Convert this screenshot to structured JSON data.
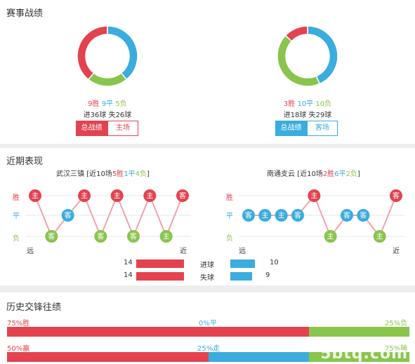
{
  "colors": {
    "red": "#e2434f",
    "blue": "#3aacde",
    "green": "#89c44d"
  },
  "section1": {
    "title": "赛事战绩",
    "left": {
      "wins": "9胜",
      "draws": "9平",
      "losses": "5负",
      "goals": "进36球 失26球",
      "win_count": 9,
      "draw_count": 9,
      "loss_count": 5,
      "tab_all": "总战绩",
      "tab_side": "主场",
      "active": "all"
    },
    "right": {
      "wins": "3胜",
      "draws": "10平",
      "losses": "10负",
      "goals": "进18球 失29球",
      "win_count": 3,
      "draw_count": 10,
      "loss_count": 10,
      "tab_all": "总战绩",
      "tab_side": "客场",
      "active": "all"
    }
  },
  "section2": {
    "title": "近期表现",
    "axis": {
      "win": "胜",
      "draw": "平",
      "loss": "负",
      "far": "远",
      "near": "近"
    },
    "left": {
      "team_name": "武汉三镇",
      "prefix": " [近10场",
      "w": "5胜",
      "d": "1平",
      "l": "4负",
      "suffix": "]",
      "results": [
        "W",
        "L",
        "D",
        "W",
        "L",
        "W",
        "L",
        "W",
        "L",
        "W"
      ],
      "venues": [
        "主",
        "客",
        "客",
        "主",
        "客",
        "主",
        "客",
        "主",
        "主",
        "客"
      ]
    },
    "right": {
      "team_name": "南通支云",
      "prefix": " [近10场",
      "w": "2胜",
      "d": "6平",
      "l": "2负",
      "suffix": "]",
      "results": [
        "D",
        "D",
        "D",
        "D",
        "W",
        "L",
        "D",
        "D",
        "L",
        "W"
      ],
      "venues": [
        "客",
        "主",
        "主",
        "客",
        "主",
        "主",
        "客",
        "客",
        "主",
        "客"
      ]
    },
    "goals_for_label": "进球",
    "goals_against_label": "失球",
    "left_goals_for": "14",
    "left_goals_against": "14",
    "right_goals_for": "10",
    "right_goals_against": "9",
    "left_gf_val": 14,
    "left_ga_val": 14,
    "right_gf_val": 10,
    "right_ga_val": 9
  },
  "section3": {
    "title": "历史交锋往绩",
    "row1": {
      "left": "75%胜",
      "mid": "0%平",
      "right": "25%负",
      "a": 75,
      "b": 0,
      "c": 25
    },
    "row2": {
      "left": "50%赢",
      "mid": "25%走",
      "right": "25%输",
      "a": 50,
      "b": 25,
      "c": 25
    }
  },
  "watermark": "5btq.com"
}
